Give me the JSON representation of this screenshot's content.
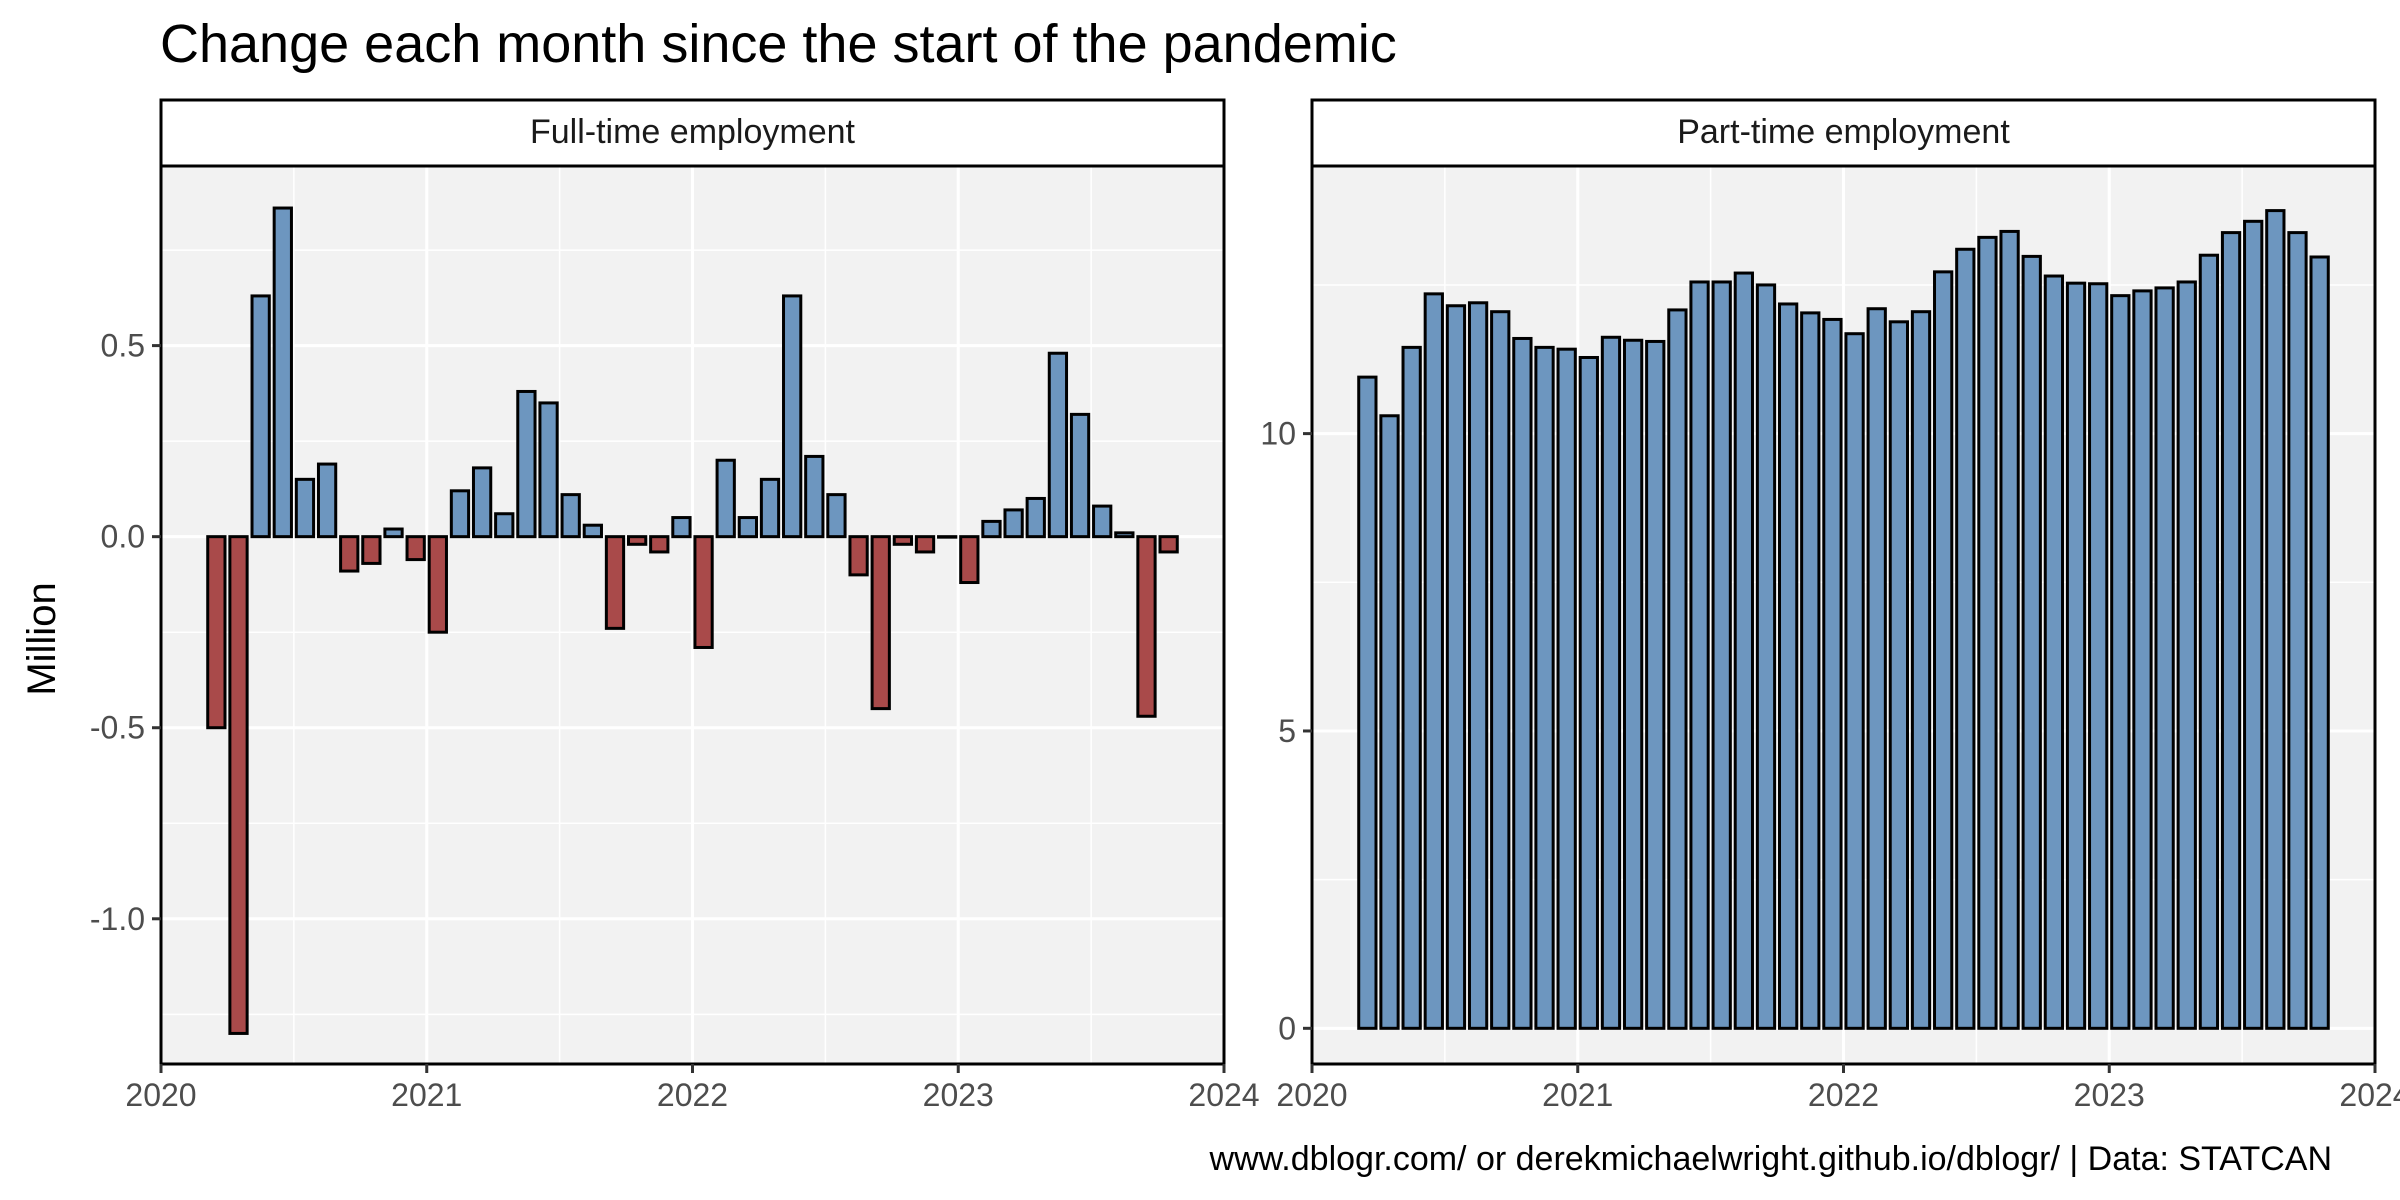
{
  "chart_data": {
    "type": "bar",
    "title": "Change each month since the start of the pandemic",
    "ylabel": "Million",
    "caption": "www.dblogr.com/ or derekmichaelwright.github.io/dblogr/ | Data: STATCAN",
    "x_ticks": [
      "2020",
      "2021",
      "2022",
      "2023",
      "2024"
    ],
    "months": [
      "2020-03",
      "2020-04",
      "2020-05",
      "2020-06",
      "2020-07",
      "2020-08",
      "2020-09",
      "2020-10",
      "2020-11",
      "2020-12",
      "2021-01",
      "2021-02",
      "2021-03",
      "2021-04",
      "2021-05",
      "2021-06",
      "2021-07",
      "2021-08",
      "2021-09",
      "2021-10",
      "2021-11",
      "2021-12",
      "2022-01",
      "2022-02",
      "2022-03",
      "2022-04",
      "2022-05",
      "2022-06",
      "2022-07",
      "2022-08",
      "2022-09",
      "2022-10",
      "2022-11",
      "2022-12",
      "2023-01",
      "2023-02",
      "2023-03",
      "2023-04",
      "2023-05",
      "2023-06",
      "2023-07",
      "2023-08",
      "2023-09",
      "2023-10"
    ],
    "colors": {
      "positive": "#6d96bf",
      "negative": "#a94a4a",
      "panel_bg": "#f2f2f2",
      "grid": "#ffffff",
      "border": "#000000"
    },
    "panels": [
      {
        "name": "Full-time employment",
        "ylim": [
          -1.38,
          0.97
        ],
        "y_ticks": [
          -1.0,
          -0.5,
          0.0,
          0.5
        ],
        "y_tick_labels": [
          "-1.0",
          "-0.5",
          "0.0",
          "0.5"
        ],
        "y_minor": [
          -1.25,
          -0.75,
          -0.25,
          0.25,
          0.75
        ],
        "values": [
          -0.5,
          -1.3,
          0.63,
          0.86,
          0.15,
          0.19,
          -0.09,
          -0.07,
          0.02,
          -0.06,
          -0.25,
          0.12,
          0.18,
          0.06,
          0.38,
          0.35,
          0.11,
          0.03,
          -0.24,
          -0.02,
          -0.04,
          0.05,
          -0.29,
          0.2,
          0.05,
          0.15,
          0.63,
          0.21,
          0.11,
          -0.1,
          -0.45,
          -0.02,
          -0.04,
          0.0,
          -0.12,
          0.04,
          0.07,
          0.1,
          0.48,
          0.32,
          0.08,
          0.01,
          -0.47,
          -0.04
        ]
      },
      {
        "name": "Part-time employment",
        "ylim": [
          -0.6,
          14.5
        ],
        "y_ticks": [
          0,
          5,
          10
        ],
        "y_tick_labels": [
          "0",
          "5",
          "10"
        ],
        "y_minor": [
          2.5,
          7.5,
          12.5
        ],
        "values": [
          10.95,
          10.3,
          11.45,
          12.35,
          12.15,
          12.2,
          12.05,
          11.6,
          11.45,
          11.42,
          11.28,
          11.62,
          11.57,
          11.55,
          12.08,
          12.55,
          12.55,
          12.7,
          12.5,
          12.18,
          12.03,
          11.92,
          11.68,
          12.1,
          11.88,
          12.05,
          12.72,
          13.1,
          13.3,
          13.4,
          12.98,
          12.65,
          12.53,
          12.52,
          12.32,
          12.4,
          12.45,
          12.55,
          13.0,
          13.38,
          13.57,
          13.75,
          13.38,
          12.97
        ]
      }
    ]
  }
}
